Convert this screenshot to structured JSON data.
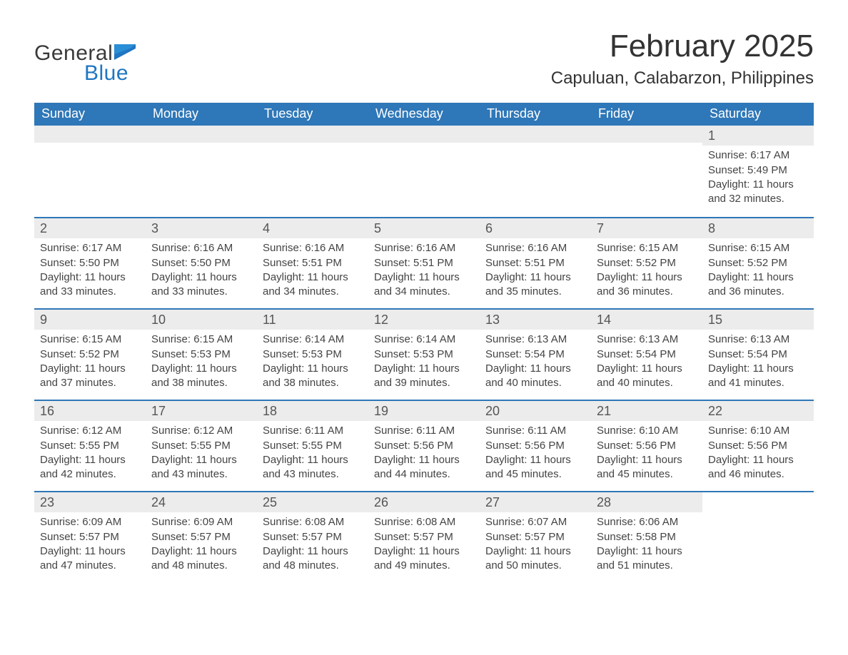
{
  "brand": {
    "word1": "General",
    "word2": "Blue",
    "flag_color": "#1f76c2",
    "text_color_dark": "#3a3a3a",
    "text_color_blue": "#1f76c2"
  },
  "title": "February 2025",
  "location": "Capuluan, Calabarzon, Philippines",
  "colors": {
    "header_bg": "#2e77b8",
    "header_text": "#ffffff",
    "row_divider": "#2e77b8",
    "daynum_bg": "#ececec",
    "body_text": "#444444",
    "page_bg": "#ffffff"
  },
  "day_names": [
    "Sunday",
    "Monday",
    "Tuesday",
    "Wednesday",
    "Thursday",
    "Friday",
    "Saturday"
  ],
  "weeks": [
    [
      null,
      null,
      null,
      null,
      null,
      null,
      {
        "day": "1",
        "sunrise": "Sunrise: 6:17 AM",
        "sunset": "Sunset: 5:49 PM",
        "daylight1": "Daylight: 11 hours",
        "daylight2": "and 32 minutes."
      }
    ],
    [
      {
        "day": "2",
        "sunrise": "Sunrise: 6:17 AM",
        "sunset": "Sunset: 5:50 PM",
        "daylight1": "Daylight: 11 hours",
        "daylight2": "and 33 minutes."
      },
      {
        "day": "3",
        "sunrise": "Sunrise: 6:16 AM",
        "sunset": "Sunset: 5:50 PM",
        "daylight1": "Daylight: 11 hours",
        "daylight2": "and 33 minutes."
      },
      {
        "day": "4",
        "sunrise": "Sunrise: 6:16 AM",
        "sunset": "Sunset: 5:51 PM",
        "daylight1": "Daylight: 11 hours",
        "daylight2": "and 34 minutes."
      },
      {
        "day": "5",
        "sunrise": "Sunrise: 6:16 AM",
        "sunset": "Sunset: 5:51 PM",
        "daylight1": "Daylight: 11 hours",
        "daylight2": "and 34 minutes."
      },
      {
        "day": "6",
        "sunrise": "Sunrise: 6:16 AM",
        "sunset": "Sunset: 5:51 PM",
        "daylight1": "Daylight: 11 hours",
        "daylight2": "and 35 minutes."
      },
      {
        "day": "7",
        "sunrise": "Sunrise: 6:15 AM",
        "sunset": "Sunset: 5:52 PM",
        "daylight1": "Daylight: 11 hours",
        "daylight2": "and 36 minutes."
      },
      {
        "day": "8",
        "sunrise": "Sunrise: 6:15 AM",
        "sunset": "Sunset: 5:52 PM",
        "daylight1": "Daylight: 11 hours",
        "daylight2": "and 36 minutes."
      }
    ],
    [
      {
        "day": "9",
        "sunrise": "Sunrise: 6:15 AM",
        "sunset": "Sunset: 5:52 PM",
        "daylight1": "Daylight: 11 hours",
        "daylight2": "and 37 minutes."
      },
      {
        "day": "10",
        "sunrise": "Sunrise: 6:15 AM",
        "sunset": "Sunset: 5:53 PM",
        "daylight1": "Daylight: 11 hours",
        "daylight2": "and 38 minutes."
      },
      {
        "day": "11",
        "sunrise": "Sunrise: 6:14 AM",
        "sunset": "Sunset: 5:53 PM",
        "daylight1": "Daylight: 11 hours",
        "daylight2": "and 38 minutes."
      },
      {
        "day": "12",
        "sunrise": "Sunrise: 6:14 AM",
        "sunset": "Sunset: 5:53 PM",
        "daylight1": "Daylight: 11 hours",
        "daylight2": "and 39 minutes."
      },
      {
        "day": "13",
        "sunrise": "Sunrise: 6:13 AM",
        "sunset": "Sunset: 5:54 PM",
        "daylight1": "Daylight: 11 hours",
        "daylight2": "and 40 minutes."
      },
      {
        "day": "14",
        "sunrise": "Sunrise: 6:13 AM",
        "sunset": "Sunset: 5:54 PM",
        "daylight1": "Daylight: 11 hours",
        "daylight2": "and 40 minutes."
      },
      {
        "day": "15",
        "sunrise": "Sunrise: 6:13 AM",
        "sunset": "Sunset: 5:54 PM",
        "daylight1": "Daylight: 11 hours",
        "daylight2": "and 41 minutes."
      }
    ],
    [
      {
        "day": "16",
        "sunrise": "Sunrise: 6:12 AM",
        "sunset": "Sunset: 5:55 PM",
        "daylight1": "Daylight: 11 hours",
        "daylight2": "and 42 minutes."
      },
      {
        "day": "17",
        "sunrise": "Sunrise: 6:12 AM",
        "sunset": "Sunset: 5:55 PM",
        "daylight1": "Daylight: 11 hours",
        "daylight2": "and 43 minutes."
      },
      {
        "day": "18",
        "sunrise": "Sunrise: 6:11 AM",
        "sunset": "Sunset: 5:55 PM",
        "daylight1": "Daylight: 11 hours",
        "daylight2": "and 43 minutes."
      },
      {
        "day": "19",
        "sunrise": "Sunrise: 6:11 AM",
        "sunset": "Sunset: 5:56 PM",
        "daylight1": "Daylight: 11 hours",
        "daylight2": "and 44 minutes."
      },
      {
        "day": "20",
        "sunrise": "Sunrise: 6:11 AM",
        "sunset": "Sunset: 5:56 PM",
        "daylight1": "Daylight: 11 hours",
        "daylight2": "and 45 minutes."
      },
      {
        "day": "21",
        "sunrise": "Sunrise: 6:10 AM",
        "sunset": "Sunset: 5:56 PM",
        "daylight1": "Daylight: 11 hours",
        "daylight2": "and 45 minutes."
      },
      {
        "day": "22",
        "sunrise": "Sunrise: 6:10 AM",
        "sunset": "Sunset: 5:56 PM",
        "daylight1": "Daylight: 11 hours",
        "daylight2": "and 46 minutes."
      }
    ],
    [
      {
        "day": "23",
        "sunrise": "Sunrise: 6:09 AM",
        "sunset": "Sunset: 5:57 PM",
        "daylight1": "Daylight: 11 hours",
        "daylight2": "and 47 minutes."
      },
      {
        "day": "24",
        "sunrise": "Sunrise: 6:09 AM",
        "sunset": "Sunset: 5:57 PM",
        "daylight1": "Daylight: 11 hours",
        "daylight2": "and 48 minutes."
      },
      {
        "day": "25",
        "sunrise": "Sunrise: 6:08 AM",
        "sunset": "Sunset: 5:57 PM",
        "daylight1": "Daylight: 11 hours",
        "daylight2": "and 48 minutes."
      },
      {
        "day": "26",
        "sunrise": "Sunrise: 6:08 AM",
        "sunset": "Sunset: 5:57 PM",
        "daylight1": "Daylight: 11 hours",
        "daylight2": "and 49 minutes."
      },
      {
        "day": "27",
        "sunrise": "Sunrise: 6:07 AM",
        "sunset": "Sunset: 5:57 PM",
        "daylight1": "Daylight: 11 hours",
        "daylight2": "and 50 minutes."
      },
      {
        "day": "28",
        "sunrise": "Sunrise: 6:06 AM",
        "sunset": "Sunset: 5:58 PM",
        "daylight1": "Daylight: 11 hours",
        "daylight2": "and 51 minutes."
      },
      null
    ]
  ]
}
